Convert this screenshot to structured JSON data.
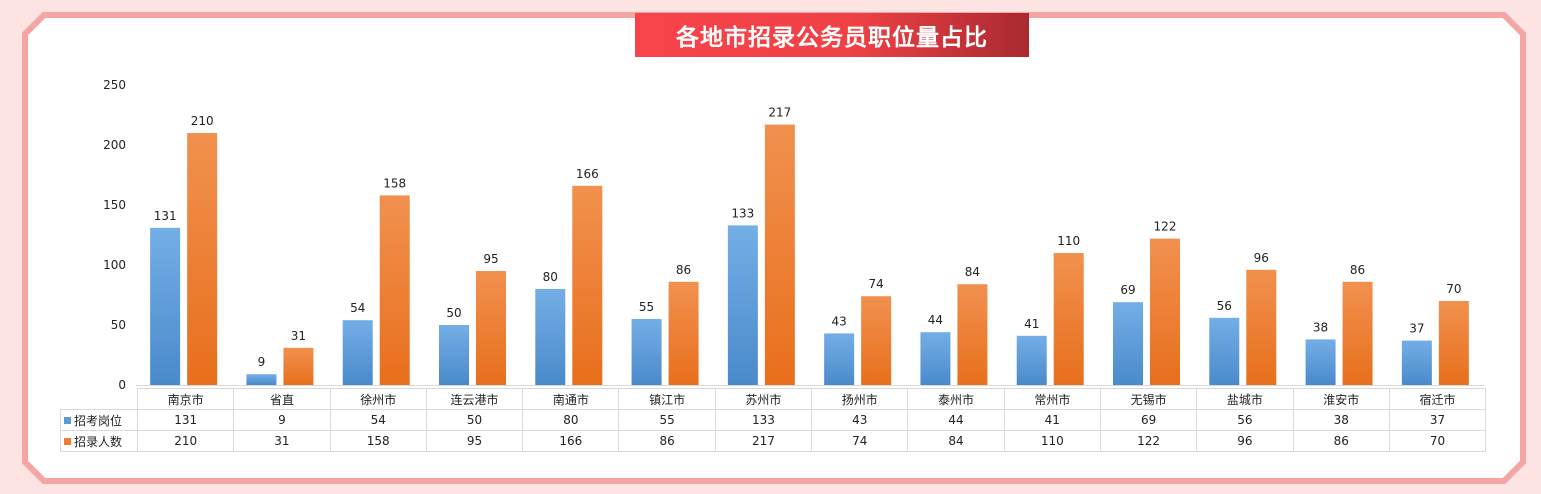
{
  "title": "各地市招录公务员职位量占比",
  "colors": {
    "frame": "#f5a5a2",
    "background": "#fde3e1",
    "title_start": "#f8434a",
    "title_end": "#a82a30",
    "series1": "#5b9bd5",
    "series2": "#ed7d31"
  },
  "chart_data": {
    "type": "bar",
    "title": "各地市招录公务员职位量占比",
    "categories": [
      "南京市",
      "省直",
      "徐州市",
      "连云港市",
      "南通市",
      "镇江市",
      "苏州市",
      "扬州市",
      "泰州市",
      "常州市",
      "无锡市",
      "盐城市",
      "淮安市",
      "宿迁市"
    ],
    "series": [
      {
        "name": "招考岗位",
        "values": [
          131,
          9,
          54,
          50,
          80,
          55,
          133,
          43,
          44,
          41,
          69,
          56,
          38,
          37
        ]
      },
      {
        "name": "招录人数",
        "values": [
          210,
          31,
          158,
          95,
          166,
          86,
          217,
          74,
          84,
          110,
          122,
          96,
          86,
          70
        ]
      }
    ],
    "ylim": [
      0,
      250
    ],
    "yticks": [
      0,
      50,
      100,
      150,
      200,
      250
    ],
    "grid": false,
    "legend": "data-table",
    "data_table": true
  }
}
